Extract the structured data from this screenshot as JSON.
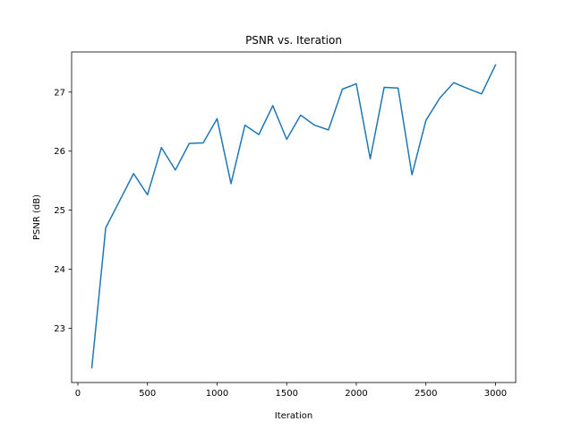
{
  "chart_data": {
    "type": "line",
    "title": "PSNR vs. Iteration",
    "xlabel": "Iteration",
    "ylabel": "PSNR (dB)",
    "xlim": [
      -45,
      3145
    ],
    "ylim": [
      22.08,
      27.68
    ],
    "xticks": [
      0,
      500,
      1000,
      1500,
      2000,
      2500,
      3000
    ],
    "yticks": [
      23,
      24,
      25,
      26,
      27
    ],
    "xtick_labels": [
      "0",
      "500",
      "1000",
      "1500",
      "2000",
      "2500",
      "3000"
    ],
    "ytick_labels": [
      "23",
      "24",
      "25",
      "26",
      "27"
    ],
    "grid": false,
    "color": "#1f77b4",
    "x": [
      100,
      200,
      300,
      400,
      500,
      600,
      700,
      800,
      900,
      1000,
      1100,
      1200,
      1300,
      1400,
      1500,
      1600,
      1700,
      1800,
      1900,
      2000,
      2100,
      2200,
      2300,
      2400,
      2500,
      2600,
      2700,
      2800,
      2900,
      3000
    ],
    "y": [
      22.33,
      24.7,
      25.16,
      25.62,
      25.26,
      26.06,
      25.68,
      26.13,
      26.14,
      26.55,
      25.45,
      26.44,
      26.28,
      26.77,
      26.2,
      26.61,
      26.44,
      26.36,
      27.05,
      27.14,
      25.87,
      27.08,
      27.07,
      25.6,
      26.52,
      26.9,
      27.16,
      27.06,
      26.97,
      27.46
    ]
  }
}
